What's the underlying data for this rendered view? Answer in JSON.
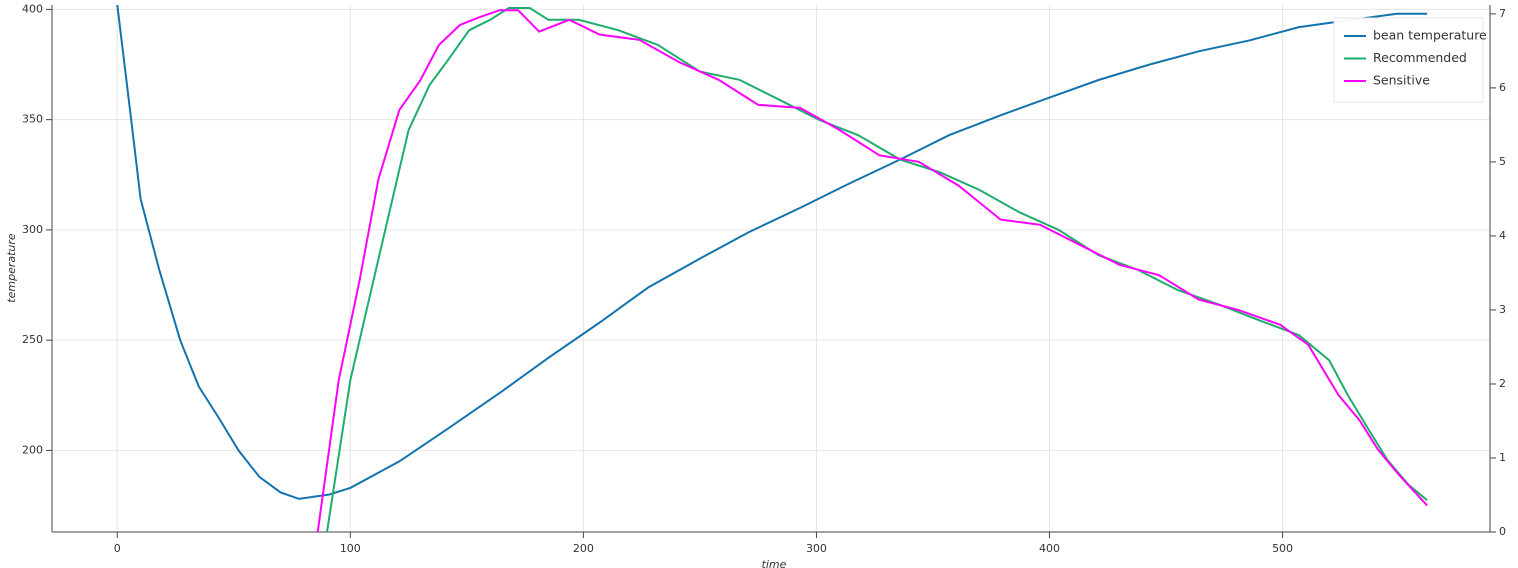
{
  "chart_data": {
    "type": "line",
    "xlabel": "time",
    "ylabel": "temperature",
    "xlim": [
      -28,
      589
    ],
    "xticks": [
      0,
      100,
      200,
      300,
      400,
      500
    ],
    "ylim": [
      163,
      402
    ],
    "yticks": [
      200,
      250,
      300,
      350,
      400
    ],
    "y2lim": [
      0,
      7.12
    ],
    "y2ticks": [
      0,
      1,
      2,
      3,
      4,
      5,
      6,
      7
    ],
    "grid": true,
    "legend": "top_right",
    "series": [
      {
        "name": "bean temperature",
        "color": "#1273ad",
        "x": [
          0,
          6,
          10,
          18,
          27,
          35,
          44,
          52,
          61,
          70,
          78,
          91,
          100,
          121,
          142,
          164,
          185,
          207,
          228,
          250,
          271,
          293,
          314,
          336,
          357,
          379,
          400,
          421,
          443,
          464,
          486,
          507,
          528,
          549,
          562
        ],
        "values": [
          402,
          350,
          314,
          282,
          250,
          229,
          214,
          200,
          188,
          181,
          178,
          180,
          183,
          195,
          210,
          226,
          242,
          258,
          274,
          287,
          299,
          310,
          321,
          332,
          343,
          352,
          360,
          368,
          375,
          381,
          386,
          392,
          395,
          398,
          398
        ]
      },
      {
        "name": "Recommended",
        "color": "#1cae6a",
        "axis": "y2",
        "x": [
          90,
          100,
          108,
          117,
          125,
          134,
          142,
          151,
          160,
          168,
          177,
          185,
          198,
          215,
          232,
          250,
          267,
          284,
          301,
          318,
          336,
          353,
          370,
          387,
          404,
          421,
          438,
          455,
          473,
          490,
          507,
          520,
          528,
          537,
          545,
          554,
          562
        ],
        "values": [
          0,
          2.05,
          3.14,
          4.35,
          5.43,
          6.04,
          6.38,
          6.78,
          6.92,
          7.08,
          7.08,
          6.92,
          6.92,
          6.78,
          6.58,
          6.22,
          6.11,
          5.84,
          5.57,
          5.36,
          5.03,
          4.86,
          4.62,
          4.32,
          4.08,
          3.74,
          3.54,
          3.27,
          3.07,
          2.86,
          2.66,
          2.32,
          1.85,
          1.38,
          0.97,
          0.64,
          0.43
        ]
      },
      {
        "name": "Sensitive",
        "color": "#ff00ff",
        "axis": "y2",
        "x": [
          86,
          95,
          104,
          112,
          121,
          130,
          138,
          147,
          155,
          164,
          172,
          181,
          194,
          207,
          224,
          241,
          258,
          275,
          293,
          310,
          327,
          344,
          361,
          379,
          396,
          413,
          430,
          447,
          464,
          481,
          499,
          511,
          524,
          533,
          541,
          550,
          562
        ],
        "values": [
          0,
          2.05,
          3.4,
          4.76,
          5.7,
          6.1,
          6.58,
          6.85,
          6.95,
          7.05,
          7.05,
          6.76,
          6.92,
          6.72,
          6.65,
          6.35,
          6.11,
          5.77,
          5.73,
          5.43,
          5.09,
          5.0,
          4.68,
          4.22,
          4.15,
          3.88,
          3.61,
          3.47,
          3.14,
          3.0,
          2.8,
          2.53,
          1.85,
          1.51,
          1.11,
          0.77,
          0.36
        ]
      }
    ]
  }
}
